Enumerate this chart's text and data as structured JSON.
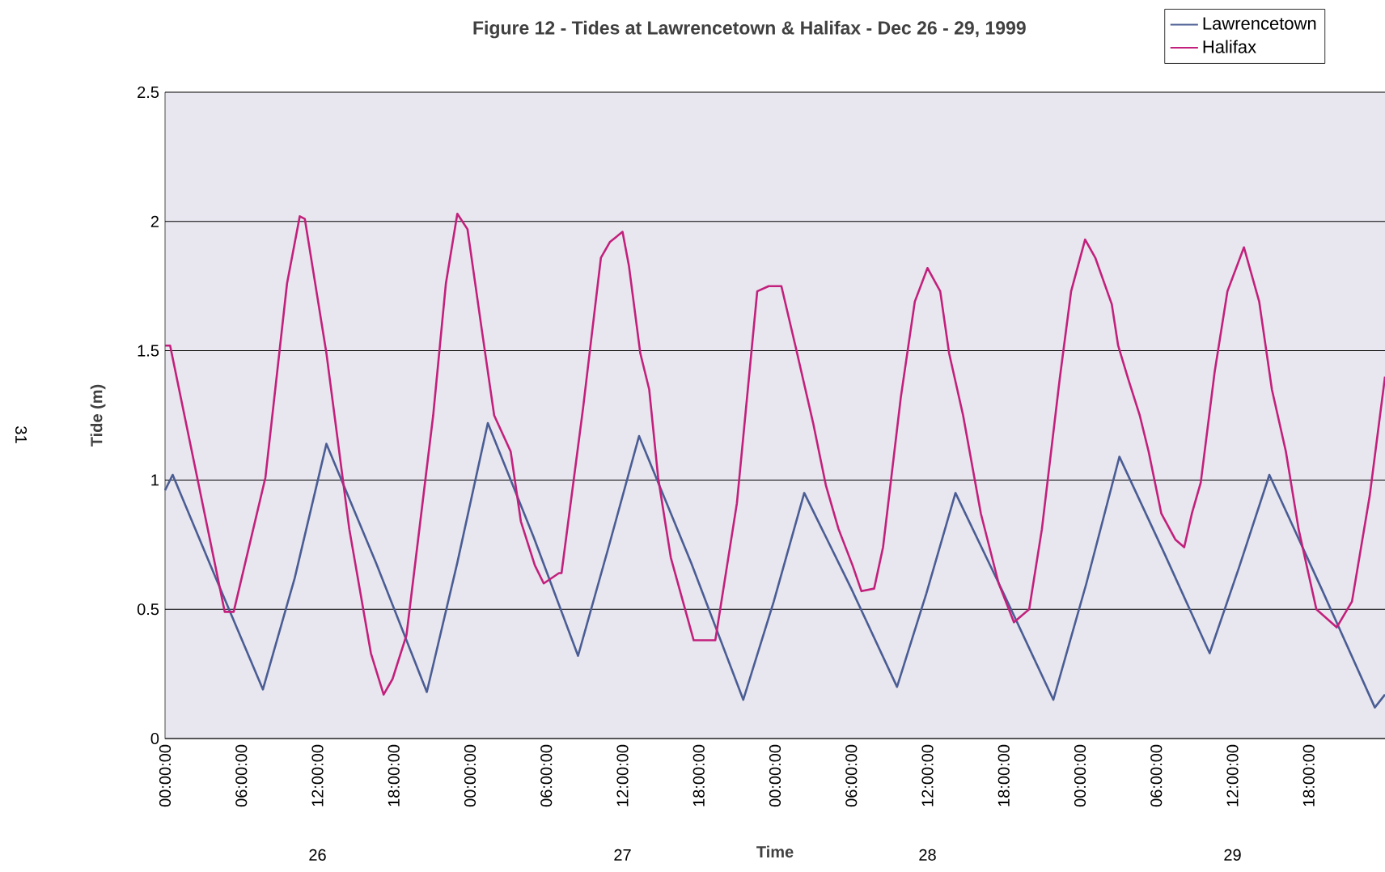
{
  "chart_data": {
    "type": "line",
    "title": "Figure 12 - Tides at Lawrencetown & Halifax - Dec 26 - 29, 1999",
    "xlabel": "Time",
    "ylabel": "Tide (m)",
    "xlim": [
      "1999-12-26T00:00",
      "1999-12-30T00:00"
    ],
    "ylim": [
      0,
      2.5
    ],
    "xticks": [
      {
        "value": "1999-12-26T00:00",
        "label": "00:00:00"
      },
      {
        "value": "1999-12-26T06:00",
        "label": "06:00:00"
      },
      {
        "value": "1999-12-26T12:00",
        "label": "12:00:00"
      },
      {
        "value": "1999-12-26T18:00",
        "label": "18:00:00"
      },
      {
        "value": "1999-12-27T00:00",
        "label": "00:00:00"
      },
      {
        "value": "1999-12-27T06:00",
        "label": "06:00:00"
      },
      {
        "value": "1999-12-27T12:00",
        "label": "12:00:00"
      },
      {
        "value": "1999-12-27T18:00",
        "label": "18:00:00"
      },
      {
        "value": "1999-12-28T00:00",
        "label": "00:00:00"
      },
      {
        "value": "1999-12-28T06:00",
        "label": "06:00:00"
      },
      {
        "value": "1999-12-28T12:00",
        "label": "12:00:00"
      },
      {
        "value": "1999-12-28T18:00",
        "label": "18:00:00"
      },
      {
        "value": "1999-12-29T00:00",
        "label": "00:00:00"
      },
      {
        "value": "1999-12-29T06:00",
        "label": "06:00:00"
      },
      {
        "value": "1999-12-29T12:00",
        "label": "12:00:00"
      },
      {
        "value": "1999-12-29T18:00",
        "label": "18:00:00"
      }
    ],
    "yticks": [
      0,
      0.5,
      1,
      1.5,
      2,
      2.5
    ],
    "grid": "y",
    "legend": "top right",
    "marker": "none",
    "line_style": "solid",
    "annotations": [
      "26",
      "27",
      "28",
      "29",
      "31"
    ],
    "series": [
      {
        "name": "Lawrencetown",
        "color": "#4a5d94",
        "x": [
          "1999-12-26T00:00",
          "1999-12-26T00:36",
          "1999-12-26T04:00",
          "1999-12-26T07:42",
          "1999-12-26T10:12",
          "1999-12-26T12:42",
          "1999-12-26T16:36",
          "1999-12-26T20:36",
          "1999-12-26T23:00",
          "1999-12-27T01:24",
          "1999-12-27T05:00",
          "1999-12-27T08:30",
          "1999-12-27T10:54",
          "1999-12-27T13:18",
          "1999-12-27T17:24",
          "1999-12-27T21:30",
          "1999-12-27T23:54",
          "1999-12-28T02:18",
          "1999-12-28T06:00",
          "1999-12-28T09:36",
          "1999-12-28T11:54",
          "1999-12-28T14:12",
          "1999-12-28T18:00",
          "1999-12-28T21:54",
          "1999-12-29T00:30",
          "1999-12-29T03:06",
          "1999-12-29T06:36",
          "1999-12-29T10:12",
          "1999-12-29T12:30",
          "1999-12-29T14:54",
          "1999-12-29T19:00",
          "1999-12-29T23:12",
          "1999-12-30T00:00"
        ],
        "values": [
          0.96,
          1.02,
          0.62,
          0.19,
          0.62,
          1.14,
          0.68,
          0.18,
          0.68,
          1.22,
          0.78,
          0.32,
          0.74,
          1.17,
          0.68,
          0.15,
          0.53,
          0.95,
          0.58,
          0.2,
          0.56,
          0.95,
          0.56,
          0.15,
          0.6,
          1.09,
          0.72,
          0.33,
          0.66,
          1.02,
          0.58,
          0.12,
          0.17
        ]
      },
      {
        "name": "Halifax",
        "color": "#c2207c",
        "x": [
          "1999-12-26T00:00",
          "1999-12-26T00:24",
          "1999-12-26T04:42",
          "1999-12-26T05:24",
          "1999-12-26T07:54",
          "1999-12-26T09:36",
          "1999-12-26T10:36",
          "1999-12-26T11:00",
          "1999-12-26T12:42",
          "1999-12-26T14:30",
          "1999-12-26T16:12",
          "1999-12-26T17:12",
          "1999-12-26T17:54",
          "1999-12-26T19:00",
          "1999-12-26T21:06",
          "1999-12-26T22:06",
          "1999-12-26T23:00",
          "1999-12-26T23:48",
          "1999-12-27T00:54",
          "1999-12-27T01:54",
          "1999-12-27T03:12",
          "1999-12-27T04:00",
          "1999-12-27T05:06",
          "1999-12-27T05:48",
          "1999-12-27T07:00",
          "1999-12-27T07:12",
          "1999-12-27T08:54",
          "1999-12-27T10:18",
          "1999-12-27T11:00",
          "1999-12-27T12:00",
          "1999-12-27T12:30",
          "1999-12-27T13:24",
          "1999-12-27T14:06",
          "1999-12-27T14:48",
          "1999-12-27T15:48",
          "1999-12-27T17:36",
          "1999-12-27T19:18",
          "1999-12-27T21:00",
          "1999-12-27T22:36",
          "1999-12-27T23:30",
          "1999-12-28T00:30",
          "1999-12-28T01:36",
          "1999-12-28T03:00",
          "1999-12-28T04:00",
          "1999-12-28T05:00",
          "1999-12-28T06:06",
          "1999-12-28T06:48",
          "1999-12-28T07:48",
          "1999-12-28T08:30",
          "1999-12-28T09:54",
          "1999-12-28T11:00",
          "1999-12-28T12:00",
          "1999-12-28T13:00",
          "1999-12-28T13:42",
          "1999-12-28T14:48",
          "1999-12-28T16:12",
          "1999-12-28T17:36",
          "1999-12-28T18:48",
          "1999-12-28T20:00",
          "1999-12-28T21:00",
          "1999-12-28T22:24",
          "1999-12-28T23:18",
          "1999-12-29T00:24",
          "1999-12-29T01:12",
          "1999-12-29T02:30",
          "1999-12-29T03:00",
          "1999-12-29T03:48",
          "1999-12-29T04:42",
          "1999-12-29T05:24",
          "1999-12-29T06:24",
          "1999-12-29T07:30",
          "1999-12-29T08:12",
          "1999-12-29T08:48",
          "1999-12-29T09:30",
          "1999-12-29T10:36",
          "1999-12-29T11:36",
          "1999-12-29T12:54",
          "1999-12-29T14:06",
          "1999-12-29T15:06",
          "1999-12-29T16:12",
          "1999-12-29T17:12",
          "1999-12-29T18:36",
          "1999-12-29T20:12",
          "1999-12-29T21:24",
          "1999-12-29T22:48",
          "1999-12-30T00:00"
        ],
        "values": [
          1.52,
          1.52,
          0.49,
          0.49,
          1.01,
          1.76,
          2.02,
          2.01,
          1.49,
          0.81,
          0.33,
          0.17,
          0.23,
          0.4,
          1.25,
          1.76,
          2.03,
          1.97,
          1.59,
          1.25,
          1.11,
          0.84,
          0.67,
          0.6,
          0.64,
          0.64,
          1.28,
          1.86,
          1.92,
          1.96,
          1.83,
          1.49,
          1.35,
          1.01,
          0.7,
          0.38,
          0.38,
          0.91,
          1.73,
          1.75,
          1.75,
          1.52,
          1.22,
          0.98,
          0.81,
          0.67,
          0.57,
          0.58,
          0.74,
          1.32,
          1.69,
          1.82,
          1.73,
          1.49,
          1.25,
          0.87,
          0.6,
          0.45,
          0.5,
          0.81,
          1.39,
          1.73,
          1.93,
          1.86,
          1.68,
          1.52,
          1.39,
          1.25,
          1.11,
          0.87,
          0.77,
          0.74,
          0.87,
          0.99,
          1.42,
          1.73,
          1.9,
          1.69,
          1.35,
          1.11,
          0.81,
          0.5,
          0.43,
          0.53,
          0.94,
          1.4
        ]
      }
    ]
  }
}
